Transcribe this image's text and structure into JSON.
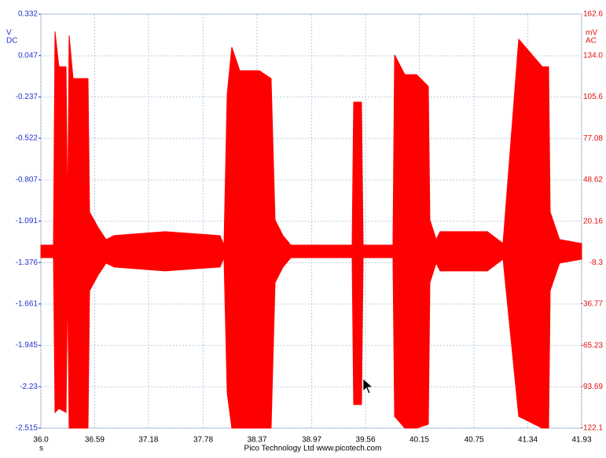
{
  "chart_data": {
    "type": "area-band",
    "color": "#ff0000",
    "x_unit": "s",
    "y_unit": "mV",
    "y_coupling": "AC",
    "y2_unit": "V",
    "y2_coupling": "DC",
    "footer": "Pico Technology Ltd  www.picotech.com",
    "xlim": [
      36.0,
      41.93
    ],
    "xticks": [
      {
        "value": 36.0,
        "label": "36.0"
      },
      36.59,
      37.18,
      37.78,
      38.37,
      38.97,
      39.56,
      40.15,
      40.75,
      41.34,
      41.93
    ],
    "ylim": [
      -122.1,
      162.6
    ],
    "yticks": [
      162.6,
      {
        "value": 134.0,
        "label": "134.0"
      },
      105.6,
      77.08,
      48.62,
      20.16,
      -8.3,
      -36.77,
      -65.23,
      -93.69,
      -122.1
    ],
    "y2lim": [
      -2.515,
      0.332
    ],
    "y2ticks": [
      0.332,
      0.047,
      -0.237,
      -0.522,
      -0.807,
      -1.091,
      -1.376,
      -1.661,
      -1.945,
      -2.23,
      -2.515
    ],
    "grid": true,
    "x": [
      36.0,
      36.138,
      36.155,
      36.198,
      36.276,
      36.293,
      36.31,
      36.353,
      36.414,
      36.517,
      36.534,
      36.629,
      36.715,
      36.802,
      37.362,
      37.965,
      38.008,
      38.043,
      38.094,
      38.181,
      38.396,
      38.525,
      38.568,
      38.655,
      38.741,
      39.413,
      39.43,
      39.516,
      39.534,
      39.861,
      39.879,
      39.991,
      40.12,
      40.249,
      40.266,
      40.335,
      40.378,
      40.896,
      41.068,
      41.24,
      41.499,
      41.568,
      41.585,
      41.688,
      41.93
    ],
    "high": [
      3.8,
      3.8,
      150.7,
      126.4,
      126.4,
      21.1,
      148.0,
      118.3,
      118.3,
      118.3,
      26.5,
      15.7,
      7.6,
      10.3,
      13.0,
      10.3,
      3.8,
      107.5,
      139.9,
      123.7,
      123.7,
      118.3,
      21.1,
      10.3,
      3.8,
      3.8,
      102.1,
      102.1,
      3.8,
      3.8,
      134.5,
      121.0,
      121.0,
      112.9,
      21.1,
      7.6,
      13.0,
      13.0,
      4.9,
      145.3,
      126.4,
      126.4,
      26.5,
      7.6,
      4.9
    ],
    "low": [
      -4.9,
      -4.9,
      -111.3,
      -108.6,
      -111.3,
      -22.1,
      -122.1,
      -122.1,
      -122.1,
      -122.1,
      -27.6,
      -16.7,
      -8.6,
      -11.3,
      -14.0,
      -11.3,
      -4.9,
      -97.8,
      -122.1,
      -122.1,
      -122.1,
      -122.1,
      -22.1,
      -11.3,
      -4.9,
      -4.9,
      -105.9,
      -105.9,
      -4.9,
      -4.9,
      -114.0,
      -122.1,
      -122.1,
      -119.4,
      -22.1,
      -8.6,
      -14.0,
      -14.0,
      -5.9,
      -114.0,
      -122.1,
      -122.1,
      -27.6,
      -8.6,
      -5.9
    ]
  }
}
